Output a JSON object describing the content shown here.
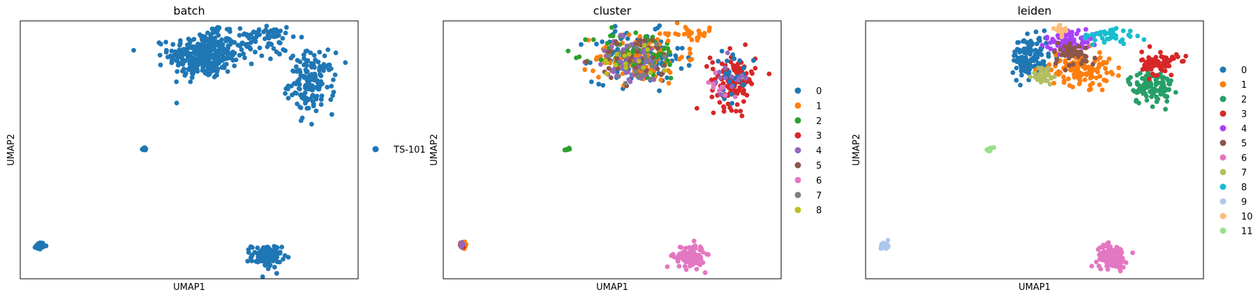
{
  "figure": {
    "background": "#ffffff"
  },
  "chart_data": [
    {
      "type": "scatter",
      "title": "batch",
      "xlabel": "UMAP1",
      "ylabel": "UMAP2",
      "grid": false,
      "ticks": false,
      "legend_placement": "right",
      "xlim": [
        -8.0,
        14.5
      ],
      "ylim": [
        -3.5,
        13.6
      ],
      "legend": [
        {
          "label": "TS-101",
          "color": "#1f77b4"
        }
      ],
      "clusters": [
        {
          "group": "TS-101",
          "color": "#1f77b4",
          "cx": 4.2,
          "cy": 11.3,
          "sx": 1.15,
          "sy": 0.75,
          "n": 320
        },
        {
          "group": "TS-101",
          "color": "#1f77b4",
          "cx": 7.6,
          "cy": 12.1,
          "sx": 1.1,
          "sy": 0.55,
          "n": 60
        },
        {
          "group": "TS-101",
          "color": "#1f77b4",
          "cx": 8.5,
          "cy": 12.75,
          "sx": 0.8,
          "sy": 0.2,
          "n": 30
        },
        {
          "group": "TS-101",
          "color": "#1f77b4",
          "cx": 11.4,
          "cy": 9.5,
          "sx": 0.75,
          "sy": 1.0,
          "n": 150
        },
        {
          "group": "TS-101",
          "color": "#1f77b4",
          "cx": 5.0,
          "cy": 13.0,
          "sx": 0.15,
          "sy": 0.2,
          "n": 12
        },
        {
          "group": "TS-101",
          "color": "#1f77b4",
          "cx": 0.25,
          "cy": 5.1,
          "sx": 0.08,
          "sy": 0.05,
          "n": 10
        },
        {
          "group": "TS-101",
          "color": "#1f77b4",
          "cx": -6.7,
          "cy": -1.3,
          "sx": 0.14,
          "sy": 0.12,
          "n": 30
        },
        {
          "group": "TS-101",
          "color": "#1f77b4",
          "cx": 8.4,
          "cy": -2.0,
          "sx": 0.5,
          "sy": 0.38,
          "n": 110
        }
      ]
    },
    {
      "type": "scatter",
      "title": "cluster",
      "xlabel": "UMAP1",
      "ylabel": "UMAP2",
      "grid": false,
      "ticks": false,
      "legend_placement": "right",
      "xlim": [
        -8.0,
        14.5
      ],
      "ylim": [
        -3.5,
        13.6
      ],
      "legend": [
        {
          "label": "0",
          "color": "#1f77b4"
        },
        {
          "label": "1",
          "color": "#ff7f0e"
        },
        {
          "label": "2",
          "color": "#2ca02c"
        },
        {
          "label": "3",
          "color": "#d62728"
        },
        {
          "label": "4",
          "color": "#9467bd"
        },
        {
          "label": "5",
          "color": "#8c564b"
        },
        {
          "label": "6",
          "color": "#e377c2"
        },
        {
          "label": "7",
          "color": "#7f7f7f"
        },
        {
          "label": "8",
          "color": "#bcbd22"
        }
      ],
      "clusters": [
        {
          "group": "0",
          "color": "#1f77b4",
          "cx": 5.0,
          "cy": 11.2,
          "sx": 1.5,
          "sy": 0.85,
          "n": 140
        },
        {
          "group": "1",
          "color": "#ff7f0e",
          "cx": 5.1,
          "cy": 11.2,
          "sx": 1.5,
          "sy": 0.85,
          "n": 110
        },
        {
          "group": "2",
          "color": "#2ca02c",
          "cx": 5.0,
          "cy": 11.4,
          "sx": 1.5,
          "sy": 0.85,
          "n": 60
        },
        {
          "group": "4",
          "color": "#9467bd",
          "cx": 4.6,
          "cy": 11.0,
          "sx": 1.3,
          "sy": 0.8,
          "n": 55
        },
        {
          "group": "5",
          "color": "#8c564b",
          "cx": 5.0,
          "cy": 11.0,
          "sx": 1.3,
          "sy": 0.8,
          "n": 40
        },
        {
          "group": "7",
          "color": "#7f7f7f",
          "cx": 4.8,
          "cy": 11.0,
          "sx": 1.2,
          "sy": 0.8,
          "n": 18
        },
        {
          "group": "8",
          "color": "#bcbd22",
          "cx": 4.8,
          "cy": 11.2,
          "sx": 1.2,
          "sy": 0.8,
          "n": 15
        },
        {
          "group": "1",
          "color": "#ff7f0e",
          "cx": 8.6,
          "cy": 12.75,
          "sx": 0.8,
          "sy": 0.2,
          "n": 25
        },
        {
          "group": "3",
          "color": "#d62728",
          "cx": 11.3,
          "cy": 9.7,
          "sx": 0.75,
          "sy": 0.9,
          "n": 120
        },
        {
          "group": "0",
          "color": "#1f77b4",
          "cx": 11.3,
          "cy": 9.9,
          "sx": 0.7,
          "sy": 0.8,
          "n": 25
        },
        {
          "group": "4",
          "color": "#9467bd",
          "cx": 10.8,
          "cy": 9.8,
          "sx": 0.6,
          "sy": 0.7,
          "n": 15
        },
        {
          "group": "6",
          "color": "#e377c2",
          "cx": 10.3,
          "cy": 9.2,
          "sx": 0.5,
          "sy": 0.5,
          "n": 10
        },
        {
          "group": "2",
          "color": "#2ca02c",
          "cx": 0.25,
          "cy": 5.1,
          "sx": 0.08,
          "sy": 0.05,
          "n": 10
        },
        {
          "group": "0",
          "color": "#1f77b4",
          "cx": -6.7,
          "cy": -1.3,
          "sx": 0.12,
          "sy": 0.1,
          "n": 10
        },
        {
          "group": "1",
          "color": "#ff7f0e",
          "cx": -6.6,
          "cy": -1.3,
          "sx": 0.12,
          "sy": 0.1,
          "n": 10
        },
        {
          "group": "3",
          "color": "#d62728",
          "cx": -6.7,
          "cy": -1.3,
          "sx": 0.12,
          "sy": 0.1,
          "n": 6
        },
        {
          "group": "4",
          "color": "#9467bd",
          "cx": -6.8,
          "cy": -1.2,
          "sx": 0.12,
          "sy": 0.1,
          "n": 5
        },
        {
          "group": "6",
          "color": "#e377c2",
          "cx": 8.4,
          "cy": -2.0,
          "sx": 0.5,
          "sy": 0.38,
          "n": 110
        }
      ]
    },
    {
      "type": "scatter",
      "title": "leiden",
      "xlabel": "UMAP1",
      "ylabel": "UMAP2",
      "grid": false,
      "ticks": false,
      "legend_placement": "right",
      "xlim": [
        -8.0,
        14.5
      ],
      "ylim": [
        -3.5,
        13.6
      ],
      "legend": [
        {
          "label": "0",
          "color": "#1f77b4"
        },
        {
          "label": "1",
          "color": "#ff7f0e"
        },
        {
          "label": "2",
          "color": "#279e68"
        },
        {
          "label": "3",
          "color": "#d62728"
        },
        {
          "label": "4",
          "color": "#aa40fc"
        },
        {
          "label": "5",
          "color": "#8c564b"
        },
        {
          "label": "6",
          "color": "#e377c2"
        },
        {
          "label": "7",
          "color": "#b5bd61"
        },
        {
          "label": "8",
          "color": "#17becf"
        },
        {
          "label": "9",
          "color": "#aec7e8"
        },
        {
          "label": "10",
          "color": "#ffbb78"
        },
        {
          "label": "11",
          "color": "#98df8a"
        }
      ],
      "clusters": [
        {
          "group": "0",
          "color": "#1f77b4",
          "cx": 3.0,
          "cy": 11.2,
          "sx": 0.6,
          "sy": 0.7,
          "n": 130
        },
        {
          "group": "1",
          "color": "#ff7f0e",
          "cx": 6.3,
          "cy": 10.5,
          "sx": 1.0,
          "sy": 0.6,
          "n": 130
        },
        {
          "group": "2",
          "color": "#279e68",
          "cx": 11.0,
          "cy": 9.2,
          "sx": 0.75,
          "sy": 0.55,
          "n": 110
        },
        {
          "group": "3",
          "color": "#d62728",
          "cx": 11.6,
          "cy": 10.8,
          "sx": 0.6,
          "sy": 0.4,
          "n": 75
        },
        {
          "group": "4",
          "color": "#aa40fc",
          "cx": 5.5,
          "cy": 12.3,
          "sx": 0.75,
          "sy": 0.38,
          "n": 80
        },
        {
          "group": "5",
          "color": "#8c564b",
          "cx": 5.8,
          "cy": 11.4,
          "sx": 0.75,
          "sy": 0.4,
          "n": 45
        },
        {
          "group": "6",
          "color": "#e377c2",
          "cx": 8.4,
          "cy": -2.0,
          "sx": 0.5,
          "sy": 0.38,
          "n": 110
        },
        {
          "group": "7",
          "color": "#b5bd61",
          "cx": 3.9,
          "cy": 10.0,
          "sx": 0.4,
          "sy": 0.3,
          "n": 35
        },
        {
          "group": "8",
          "color": "#17becf",
          "cx": 8.2,
          "cy": 12.6,
          "sx": 0.9,
          "sy": 0.28,
          "n": 45
        },
        {
          "group": "9",
          "color": "#aec7e8",
          "cx": -6.7,
          "cy": -1.3,
          "sx": 0.14,
          "sy": 0.12,
          "n": 30
        },
        {
          "group": "10",
          "color": "#ffbb78",
          "cx": 5.0,
          "cy": 13.0,
          "sx": 0.15,
          "sy": 0.2,
          "n": 12
        },
        {
          "group": "11",
          "color": "#98df8a",
          "cx": 0.25,
          "cy": 5.1,
          "sx": 0.08,
          "sy": 0.05,
          "n": 10
        }
      ]
    }
  ]
}
